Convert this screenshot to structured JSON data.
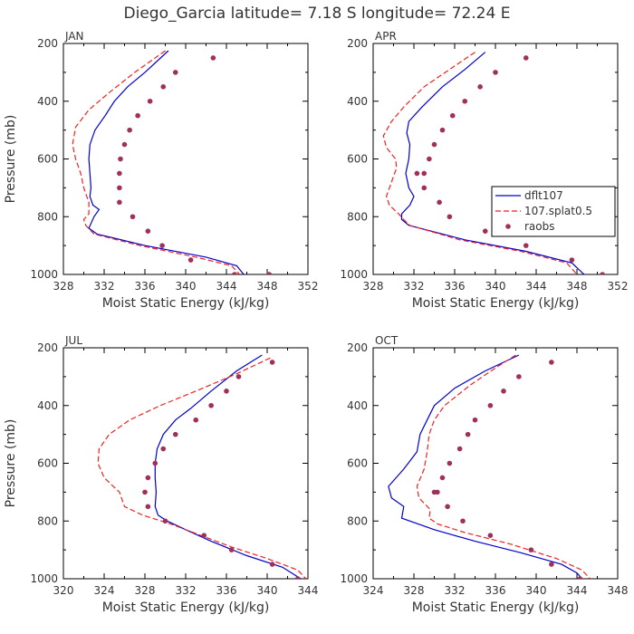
{
  "figure_title": "Diego_Garcia  latitude= 7.18 S longitude= 72.24 E",
  "legend": {
    "entries": [
      "dflt107",
      "107.splat0.5",
      "raobs"
    ]
  },
  "colors": {
    "dflt107": "#0000cc",
    "splat": "#ee2222",
    "raobs": "#a0305a",
    "axis": "#000000",
    "text": "#333333"
  },
  "chart_data": [
    {
      "type": "line",
      "title": "JAN",
      "xlabel": "Moist Static Energy (kJ/kg)",
      "ylabel": "Pressure (mb)",
      "xlim": [
        328,
        352
      ],
      "ylim": [
        1000,
        200
      ],
      "xticks": [
        "328",
        "332",
        "336",
        "340",
        "344",
        "348",
        "352"
      ],
      "yticks": [
        "200",
        "400",
        "600",
        "800",
        "1000"
      ],
      "series": [
        {
          "name": "dflt107",
          "style": "solid",
          "x": [
            338.3,
            336.0,
            334.3,
            333.0,
            332.1,
            331.1,
            330.6,
            330.5,
            330.6,
            330.7,
            330.6,
            330.9,
            331.5,
            331.0,
            330.5,
            331.3,
            336.0,
            342.0,
            345.0,
            345.7
          ],
          "y": [
            225,
            300,
            350,
            400,
            450,
            500,
            550,
            600,
            650,
            700,
            730,
            760,
            775,
            800,
            840,
            860,
            900,
            940,
            970,
            1000
          ]
        },
        {
          "name": "107.splat0.5",
          "style": "dashed",
          "x": [
            338.0,
            335.0,
            332.5,
            330.5,
            329.2,
            328.9,
            329.2,
            329.7,
            330.0,
            330.5,
            330.5,
            330.0,
            330.2,
            331.0,
            335.5,
            341.0,
            344.5,
            345.3
          ],
          "y": [
            225,
            300,
            370,
            430,
            490,
            550,
            600,
            650,
            700,
            750,
            790,
            810,
            830,
            860,
            900,
            940,
            970,
            1000
          ]
        },
        {
          "name": "raobs",
          "style": "dots",
          "x": [
            342.7,
            339.0,
            337.8,
            336.5,
            335.3,
            334.5,
            334.0,
            333.6,
            333.5,
            333.5,
            333.5,
            334.8,
            336.3,
            337.7,
            340.5,
            344.8,
            348.2
          ],
          "y": [
            250,
            300,
            350,
            400,
            450,
            500,
            550,
            600,
            650,
            700,
            750,
            800,
            850,
            900,
            950,
            1000,
            1000
          ]
        }
      ]
    },
    {
      "type": "line",
      "title": "APR",
      "xlabel": "Moist Static Energy (kJ/kg)",
      "ylabel": "",
      "xlim": [
        328,
        352
      ],
      "ylim": [
        1000,
        200
      ],
      "xticks": [
        "328",
        "332",
        "336",
        "340",
        "344",
        "348",
        "352"
      ],
      "yticks": [
        "200",
        "400",
        "600",
        "800",
        "1000"
      ],
      "series": [
        {
          "name": "dflt107",
          "style": "solid",
          "x": [
            339.0,
            337.0,
            334.8,
            332.8,
            331.5,
            331.3,
            331.6,
            331.5,
            331.2,
            331.5,
            332.0,
            331.6,
            330.8,
            330.8,
            331.5,
            337.0,
            343.0,
            347.5,
            348.7
          ],
          "y": [
            230,
            290,
            350,
            420,
            470,
            510,
            550,
            600,
            650,
            700,
            730,
            760,
            790,
            810,
            830,
            880,
            920,
            960,
            1000
          ]
        },
        {
          "name": "107.splat0.5",
          "style": "dashed",
          "x": [
            338.0,
            335.5,
            333.0,
            331.0,
            329.8,
            329.0,
            329.3,
            330.2,
            330.3,
            329.8,
            329.3,
            329.6,
            330.5,
            331.0,
            331.6,
            336.5,
            342.5,
            347.0,
            348.0
          ],
          "y": [
            230,
            290,
            350,
            420,
            470,
            520,
            560,
            600,
            630,
            680,
            730,
            760,
            790,
            810,
            830,
            880,
            920,
            960,
            1000
          ]
        },
        {
          "name": "raobs",
          "style": "dots",
          "x": [
            343.0,
            340.0,
            338.5,
            337.0,
            335.8,
            334.8,
            334.0,
            333.5,
            332.3,
            333.0,
            333.0,
            334.5,
            335.5,
            339.0,
            343.0,
            347.5,
            350.5
          ],
          "y": [
            250,
            300,
            350,
            400,
            450,
            500,
            550,
            600,
            650,
            650,
            700,
            750,
            800,
            850,
            900,
            950,
            1000
          ]
        }
      ]
    },
    {
      "type": "line",
      "title": "JUL",
      "xlabel": "Moist Static Energy (kJ/kg)",
      "ylabel": "Pressure (mb)",
      "xlim": [
        320,
        344
      ],
      "ylim": [
        1000,
        200
      ],
      "xticks": [
        "320",
        "324",
        "328",
        "332",
        "336",
        "340",
        "344"
      ],
      "yticks": [
        "200",
        "400",
        "600",
        "800",
        "1000"
      ],
      "series": [
        {
          "name": "dflt107",
          "style": "solid",
          "x": [
            339.5,
            337.0,
            334.5,
            332.5,
            331.0,
            329.8,
            329.2,
            329.0,
            329.0,
            329.1,
            329.0,
            329.3,
            330.2,
            332.0,
            334.5,
            338.0,
            341.5,
            343.3
          ],
          "y": [
            225,
            280,
            350,
            410,
            450,
            500,
            550,
            600,
            650,
            700,
            750,
            780,
            800,
            830,
            870,
            920,
            960,
            1000
          ]
        },
        {
          "name": "107.splat0.5",
          "style": "dashed",
          "x": [
            340.3,
            337.0,
            333.0,
            329.5,
            326.5,
            324.5,
            323.5,
            323.4,
            324.0,
            325.5,
            326.0,
            327.8,
            330.5,
            333.5,
            336.5,
            340.0,
            343.0,
            343.8
          ],
          "y": [
            235,
            290,
            350,
            400,
            450,
            500,
            550,
            600,
            650,
            700,
            750,
            780,
            810,
            850,
            890,
            930,
            970,
            1000
          ]
        },
        {
          "name": "raobs",
          "style": "dots",
          "x": [
            340.5,
            337.2,
            336.0,
            334.5,
            333.0,
            331.0,
            329.8,
            329.0,
            328.3,
            328.0,
            328.3,
            330.0,
            333.8,
            336.5,
            340.5,
            343.0
          ],
          "y": [
            250,
            300,
            350,
            400,
            450,
            500,
            550,
            600,
            650,
            700,
            750,
            800,
            850,
            900,
            950,
            1000
          ]
        }
      ]
    },
    {
      "type": "line",
      "title": "OCT",
      "xlabel": "Moist Static Energy (kJ/kg)",
      "ylabel": "",
      "xlim": [
        324,
        348
      ],
      "ylim": [
        1000,
        200
      ],
      "xticks": [
        "324",
        "328",
        "332",
        "336",
        "340",
        "344",
        "348"
      ],
      "yticks": [
        "200",
        "400",
        "600",
        "800",
        "1000"
      ],
      "series": [
        {
          "name": "dflt107",
          "style": "solid",
          "x": [
            338.3,
            335.0,
            332.0,
            330.0,
            329.3,
            328.6,
            328.3,
            327.0,
            325.5,
            325.8,
            327.0,
            326.8,
            330.0,
            334.0,
            338.5,
            342.5,
            344.0,
            344.5
          ],
          "y": [
            225,
            280,
            340,
            400,
            450,
            500,
            560,
            620,
            680,
            720,
            750,
            790,
            830,
            870,
            910,
            950,
            980,
            1000
          ]
        },
        {
          "name": "107.splat0.5",
          "style": "dashed",
          "x": [
            338.0,
            336.0,
            333.5,
            331.0,
            330.0,
            329.5,
            329.3,
            329.0,
            328.3,
            328.5,
            329.6,
            329.5,
            330.3,
            333.0,
            337.5,
            342.0,
            344.5,
            345.3
          ],
          "y": [
            225,
            270,
            330,
            400,
            450,
            500,
            560,
            620,
            680,
            720,
            760,
            790,
            810,
            840,
            880,
            930,
            970,
            1000
          ]
        },
        {
          "name": "raobs",
          "style": "dots",
          "x": [
            341.5,
            338.3,
            336.8,
            335.5,
            334.0,
            333.3,
            332.5,
            331.5,
            330.8,
            330.3,
            330.0,
            331.3,
            332.8,
            335.5,
            339.5,
            341.5,
            344.3
          ],
          "y": [
            250,
            300,
            350,
            400,
            450,
            500,
            550,
            600,
            650,
            700,
            700,
            750,
            800,
            850,
            900,
            950,
            1000
          ]
        }
      ]
    }
  ]
}
